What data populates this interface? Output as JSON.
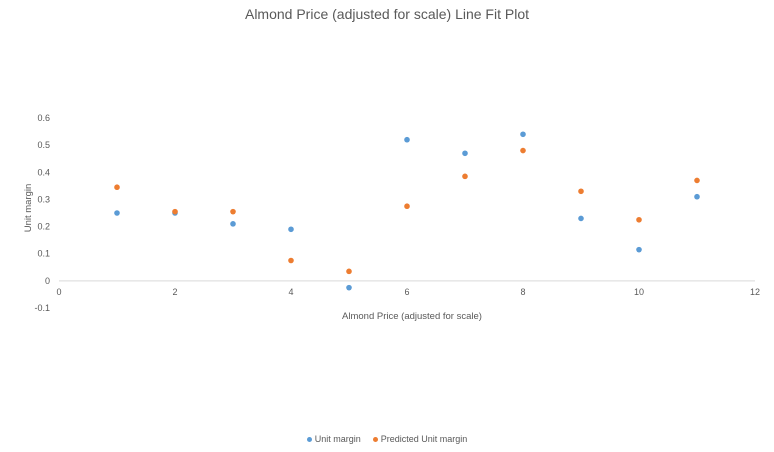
{
  "chart_data": {
    "type": "scatter",
    "title": "Almond Price (adjusted for scale) Line Fit  Plot",
    "xlabel": "Almond Price (adjusted for scale)",
    "ylabel": "Unit margin",
    "xlim": [
      0,
      12
    ],
    "ylim": [
      -0.1,
      0.6
    ],
    "x_ticks": [
      "0",
      "2",
      "4",
      "6",
      "8",
      "10",
      "12"
    ],
    "y_ticks": [
      "-0.1",
      "0",
      "0.1",
      "0.2",
      "0.3",
      "0.4",
      "0.5",
      "0.6"
    ],
    "grid": false,
    "legend_position": "bottom",
    "series": [
      {
        "name": "Unit margin",
        "color": "#5B9BD5",
        "x": [
          1,
          2,
          3,
          4,
          5,
          6,
          7,
          8,
          9,
          10,
          11
        ],
        "y": [
          0.25,
          0.25,
          0.21,
          0.19,
          -0.025,
          0.52,
          0.47,
          0.54,
          0.23,
          0.115,
          0.31
        ]
      },
      {
        "name": "Predicted Unit margin",
        "color": "#ED7D31",
        "x": [
          1,
          2,
          3,
          4,
          5,
          6,
          7,
          8,
          9,
          10,
          11
        ],
        "y": [
          0.345,
          0.255,
          0.255,
          0.075,
          0.035,
          0.275,
          0.385,
          0.48,
          0.33,
          0.225,
          0.37
        ]
      }
    ]
  }
}
